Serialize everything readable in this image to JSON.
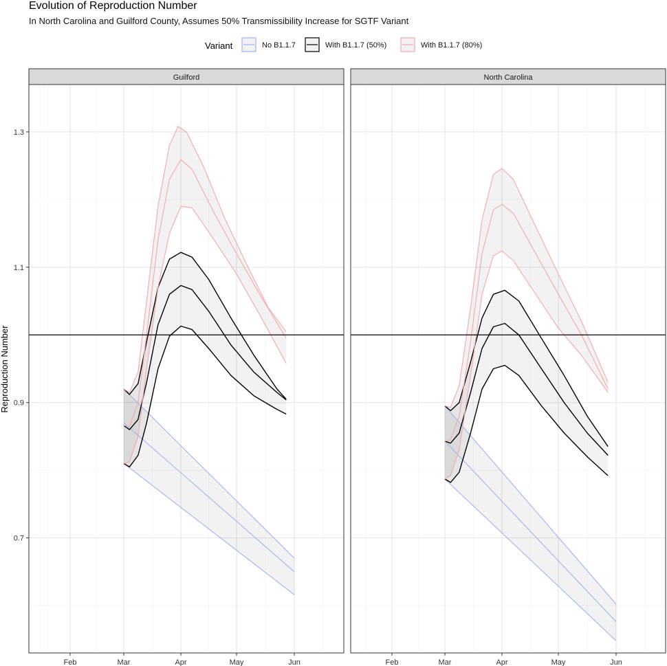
{
  "chart_data": {
    "type": "line",
    "title": "Evolution of Reproduction Number",
    "subtitle": "In North Carolina and Guilford County, Assumes 50% Transmissibility Increase for SGTF Variant",
    "xlabel": "",
    "ylabel": "Reproduction Number",
    "x_tick_labels": [
      "Feb",
      "Mar",
      "Apr",
      "May",
      "Jun"
    ],
    "y_tick_labels": [
      "0.7",
      "0.9",
      "1.1",
      "1.3"
    ],
    "y_ticks": [
      0.7,
      0.9,
      1.1,
      1.3
    ],
    "ylim": [
      0.53,
      1.37
    ],
    "reference_line": 1.0,
    "grid": true,
    "legend": {
      "title": "Variant",
      "position": "top",
      "entries": [
        {
          "label": "No B1.1.7",
          "color": "#9db4f5"
        },
        {
          "label": "With B1.1.7 (50%)",
          "color": "#000000"
        },
        {
          "label": "With B1.1.7 (80%)",
          "color": "#f7a7a7"
        }
      ]
    },
    "facets": [
      {
        "name": "Guilford",
        "series": [
          {
            "name": "No B1.1.7",
            "color": "#9db4f5",
            "upper": [
              [
                1.0,
                0.92
              ],
              [
                4.0,
                0.67
              ]
            ],
            "median": [
              [
                1.0,
                0.87
              ],
              [
                4.0,
                0.65
              ]
            ],
            "lower": [
              [
                1.0,
                0.81
              ],
              [
                4.0,
                0.616
              ]
            ]
          },
          {
            "name": "With B1.1.7 (50%)",
            "color": "#000000",
            "upper": [
              [
                1.0,
                0.92
              ],
              [
                1.1,
                0.912
              ],
              [
                1.25,
                0.928
              ],
              [
                1.4,
                0.99
              ],
              [
                1.6,
                1.07
              ],
              [
                1.8,
                1.112
              ],
              [
                2.0,
                1.122
              ],
              [
                2.2,
                1.115
              ],
              [
                2.5,
                1.082
              ],
              [
                2.9,
                1.025
              ],
              [
                3.3,
                0.97
              ],
              [
                3.7,
                0.92
              ],
              [
                3.86,
                0.905
              ]
            ],
            "median": [
              [
                1.0,
                0.866
              ],
              [
                1.1,
                0.86
              ],
              [
                1.25,
                0.875
              ],
              [
                1.4,
                0.93
              ],
              [
                1.6,
                1.015
              ],
              [
                1.8,
                1.06
              ],
              [
                2.0,
                1.073
              ],
              [
                2.2,
                1.067
              ],
              [
                2.5,
                1.035
              ],
              [
                2.9,
                0.985
              ],
              [
                3.3,
                0.945
              ],
              [
                3.7,
                0.915
              ],
              [
                3.86,
                0.904
              ]
            ],
            "lower": [
              [
                1.0,
                0.81
              ],
              [
                1.1,
                0.805
              ],
              [
                1.25,
                0.822
              ],
              [
                1.4,
                0.87
              ],
              [
                1.6,
                0.95
              ],
              [
                1.8,
                0.998
              ],
              [
                2.0,
                1.013
              ],
              [
                2.2,
                1.008
              ],
              [
                2.5,
                0.98
              ],
              [
                2.9,
                0.94
              ],
              [
                3.3,
                0.91
              ],
              [
                3.7,
                0.89
              ],
              [
                3.86,
                0.883
              ]
            ]
          },
          {
            "name": "With B1.1.7 (80%)",
            "color": "#f7a7a7",
            "upper": [
              [
                1.0,
                0.92
              ],
              [
                1.1,
                0.915
              ],
              [
                1.25,
                0.945
              ],
              [
                1.4,
                1.05
              ],
              [
                1.6,
                1.19
              ],
              [
                1.8,
                1.28
              ],
              [
                1.95,
                1.308
              ],
              [
                2.1,
                1.3
              ],
              [
                2.4,
                1.25
              ],
              [
                2.8,
                1.17
              ],
              [
                3.2,
                1.1
              ],
              [
                3.55,
                1.04
              ],
              [
                3.86,
                1.005
              ]
            ],
            "median": [
              [
                1.0,
                0.866
              ],
              [
                1.1,
                0.865
              ],
              [
                1.25,
                0.9
              ],
              [
                1.4,
                1.0
              ],
              [
                1.6,
                1.14
              ],
              [
                1.8,
                1.23
              ],
              [
                2.0,
                1.259
              ],
              [
                2.2,
                1.245
              ],
              [
                2.6,
                1.18
              ],
              [
                3.0,
                1.12
              ],
              [
                3.4,
                1.06
              ],
              [
                3.86,
                0.995
              ]
            ],
            "lower": [
              [
                1.0,
                0.81
              ],
              [
                1.1,
                0.812
              ],
              [
                1.25,
                0.85
              ],
              [
                1.4,
                0.95
              ],
              [
                1.6,
                1.07
              ],
              [
                1.8,
                1.15
              ],
              [
                2.0,
                1.19
              ],
              [
                2.2,
                1.188
              ],
              [
                2.6,
                1.14
              ],
              [
                3.0,
                1.09
              ],
              [
                3.4,
                1.03
              ],
              [
                3.86,
                0.958
              ]
            ]
          }
        ]
      },
      {
        "name": "North Carolina",
        "series": [
          {
            "name": "No B1.1.7",
            "color": "#9db4f5",
            "upper": [
              [
                1.0,
                0.895
              ],
              [
                4.0,
                0.602
              ]
            ],
            "median": [
              [
                1.0,
                0.843
              ],
              [
                4.0,
                0.576
              ]
            ],
            "lower": [
              [
                1.0,
                0.787
              ],
              [
                4.0,
                0.548
              ]
            ]
          },
          {
            "name": "With B1.1.7 (50%)",
            "color": "#000000",
            "upper": [
              [
                1.0,
                0.895
              ],
              [
                1.1,
                0.888
              ],
              [
                1.25,
                0.9
              ],
              [
                1.45,
                0.96
              ],
              [
                1.65,
                1.025
              ],
              [
                1.85,
                1.06
              ],
              [
                2.05,
                1.066
              ],
              [
                2.3,
                1.05
              ],
              [
                2.7,
                0.995
              ],
              [
                3.1,
                0.94
              ],
              [
                3.5,
                0.88
              ],
              [
                3.86,
                0.835
              ]
            ],
            "median": [
              [
                1.0,
                0.843
              ],
              [
                1.1,
                0.84
              ],
              [
                1.25,
                0.855
              ],
              [
                1.45,
                0.915
              ],
              [
                1.65,
                0.98
              ],
              [
                1.85,
                1.012
              ],
              [
                2.05,
                1.017
              ],
              [
                2.3,
                1.0
              ],
              [
                2.7,
                0.95
              ],
              [
                3.1,
                0.9
              ],
              [
                3.5,
                0.855
              ],
              [
                3.86,
                0.822
              ]
            ],
            "lower": [
              [
                1.0,
                0.787
              ],
              [
                1.1,
                0.782
              ],
              [
                1.25,
                0.797
              ],
              [
                1.45,
                0.855
              ],
              [
                1.65,
                0.92
              ],
              [
                1.85,
                0.95
              ],
              [
                2.05,
                0.955
              ],
              [
                2.3,
                0.94
              ],
              [
                2.7,
                0.895
              ],
              [
                3.1,
                0.855
              ],
              [
                3.5,
                0.82
              ],
              [
                3.86,
                0.792
              ]
            ]
          },
          {
            "name": "With B1.1.7 (80%)",
            "color": "#f7a7a7",
            "upper": [
              [
                1.0,
                0.895
              ],
              [
                1.1,
                0.893
              ],
              [
                1.25,
                0.925
              ],
              [
                1.45,
                1.04
              ],
              [
                1.65,
                1.17
              ],
              [
                1.85,
                1.237
              ],
              [
                2.0,
                1.246
              ],
              [
                2.2,
                1.23
              ],
              [
                2.6,
                1.16
              ],
              [
                3.0,
                1.09
              ],
              [
                3.4,
                1.02
              ],
              [
                3.86,
                0.93
              ]
            ],
            "median": [
              [
                1.0,
                0.843
              ],
              [
                1.1,
                0.845
              ],
              [
                1.25,
                0.88
              ],
              [
                1.45,
                0.99
              ],
              [
                1.65,
                1.12
              ],
              [
                1.85,
                1.185
              ],
              [
                2.0,
                1.193
              ],
              [
                2.2,
                1.18
              ],
              [
                2.6,
                1.12
              ],
              [
                3.0,
                1.06
              ],
              [
                3.4,
                1.0
              ],
              [
                3.86,
                0.92
              ]
            ],
            "lower": [
              [
                1.0,
                0.787
              ],
              [
                1.1,
                0.792
              ],
              [
                1.25,
                0.83
              ],
              [
                1.45,
                0.94
              ],
              [
                1.65,
                1.06
              ],
              [
                1.85,
                1.117
              ],
              [
                2.0,
                1.124
              ],
              [
                2.2,
                1.11
              ],
              [
                2.6,
                1.06
              ],
              [
                3.0,
                1.01
              ],
              [
                3.4,
                0.97
              ],
              [
                3.86,
                0.915
              ]
            ]
          }
        ]
      }
    ]
  }
}
